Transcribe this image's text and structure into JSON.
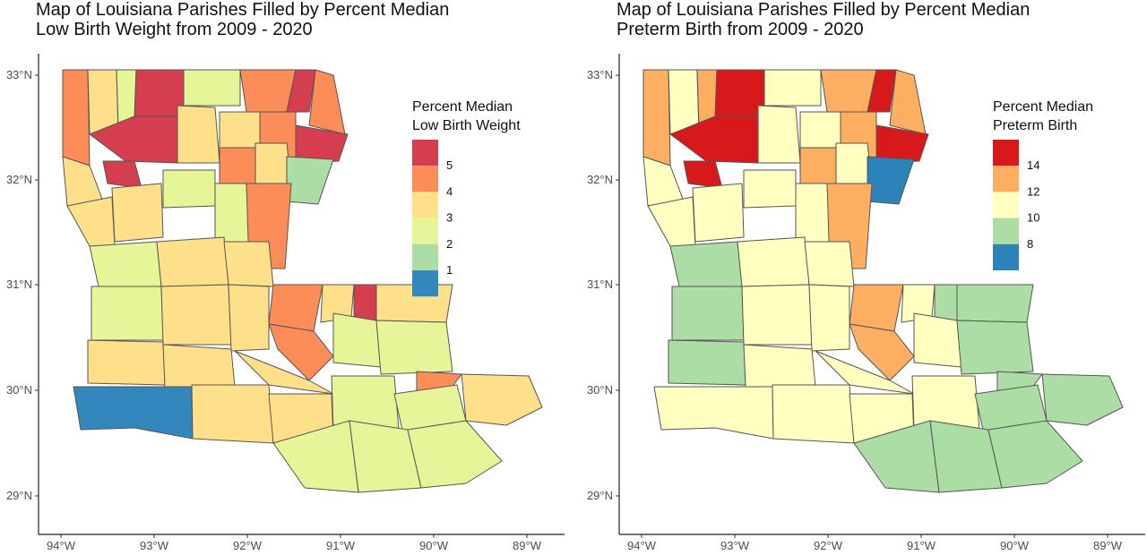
{
  "colors": {
    "red_dark": "#d7191c",
    "red": "#d53e4f",
    "orange": "#fc8d59",
    "orange_light": "#fdae61",
    "peach": "#fee08b",
    "yellow_light": "#ffffbf",
    "green_light": "#e6f598",
    "green": "#abdda4",
    "blue": "#2b83ba",
    "outline": "#555555"
  },
  "maps": [
    {
      "title_line1": "Map of Louisiana Parishes Filled by Percent Median",
      "title_line2": "Low Birth Weight from 2009 - 2020",
      "legend_title_line1": "Percent Median",
      "legend_title_line2": "Low Birth Weight",
      "legend": [
        {
          "label": "5",
          "color": "#d53e4f"
        },
        {
          "label": "4",
          "color": "#fc8d59"
        },
        {
          "label": "3",
          "color": "#fee08b"
        },
        {
          "label": "2",
          "color": "#e6f598"
        },
        {
          "label": "1",
          "color": "#abdda4"
        },
        {
          "label": "",
          "color": "#3288bd"
        }
      ]
    },
    {
      "title_line1": "Map of Louisiana Parishes Filled by Percent Median",
      "title_line2": "Preterm Birth from 2009 - 2020",
      "legend_title_line1": "Percent Median",
      "legend_title_line2": "Preterm Birth",
      "legend": [
        {
          "label": "14",
          "color": "#d7191c"
        },
        {
          "label": "12",
          "color": "#fdae61"
        },
        {
          "label": "10",
          "color": "#ffffbf"
        },
        {
          "label": "8",
          "color": "#abdda4"
        },
        {
          "label": "",
          "color": "#2b83ba"
        }
      ]
    }
  ],
  "axes": {
    "x_ticks": [
      "94°W",
      "93°W",
      "92°W",
      "91°W",
      "90°W",
      "89°W"
    ],
    "y_ticks": [
      "33°N",
      "32°N",
      "31°N",
      "30°N",
      "29°N"
    ]
  }
}
